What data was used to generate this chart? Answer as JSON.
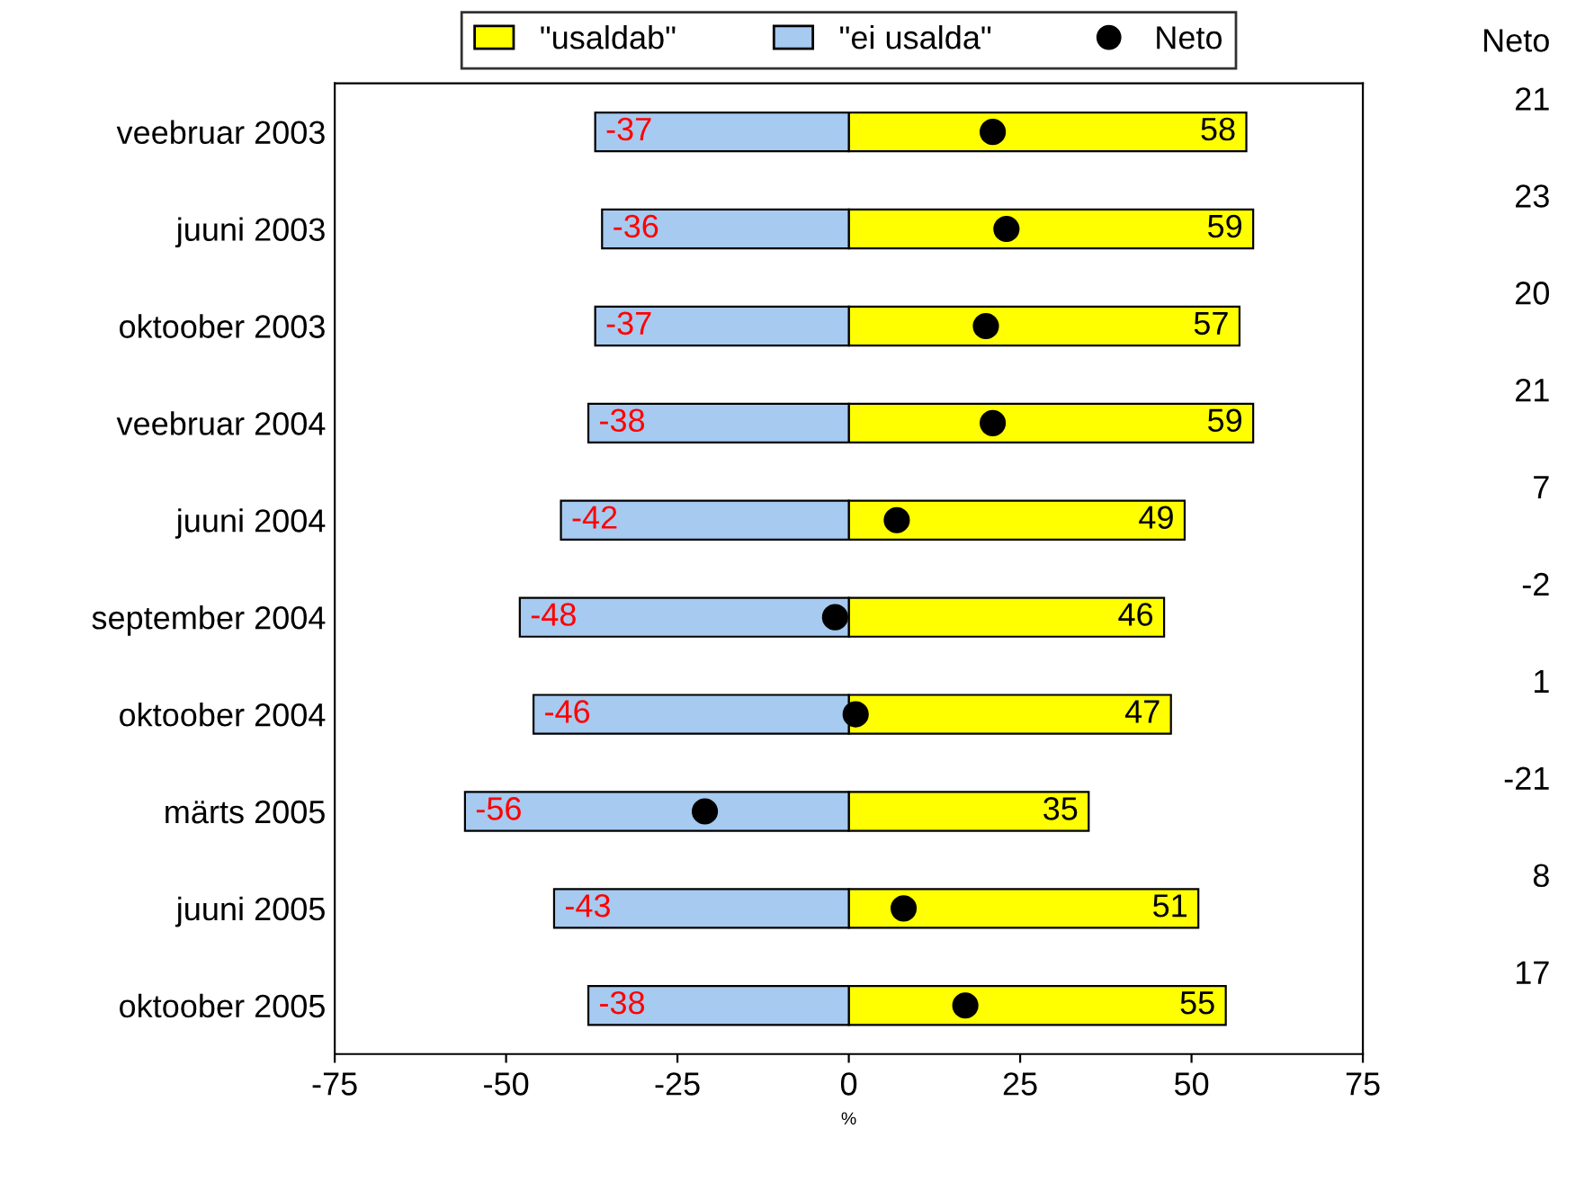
{
  "chart_data": {
    "type": "bar",
    "orientation": "horizontal",
    "stacked": true,
    "categories": [
      "veebruar 2003",
      "juuni 2003",
      "oktoober 2003",
      "veebruar 2004",
      "juuni 2004",
      "september 2004",
      "oktoober 2004",
      "märts 2005",
      "juuni 2005",
      "oktoober 2005"
    ],
    "series": [
      {
        "name": "\"usaldab\"",
        "color": "#ffff00",
        "values": [
          58,
          59,
          57,
          59,
          49,
          46,
          47,
          35,
          51,
          55
        ]
      },
      {
        "name": "\"ei usalda\"",
        "color": "#a6caf0",
        "values": [
          -37,
          -36,
          -37,
          -38,
          -42,
          -48,
          -46,
          -56,
          -43,
          -38
        ]
      },
      {
        "name": "Neto",
        "type": "scatter",
        "color": "#000000",
        "marker": "circle",
        "values": [
          21,
          23,
          20,
          21,
          7,
          -2,
          1,
          -21,
          8,
          17
        ],
        "value_labels": [
          "21",
          "23",
          "20",
          "21",
          "7",
          "-2",
          "1",
          "-21",
          "8",
          "17"
        ]
      }
    ],
    "xlim": [
      -75,
      75
    ],
    "xticks": [
      -75,
      -50,
      -25,
      0,
      25,
      50,
      75
    ],
    "xlabel": "%",
    "data_labels": true,
    "legend": "top",
    "grid": false
  }
}
